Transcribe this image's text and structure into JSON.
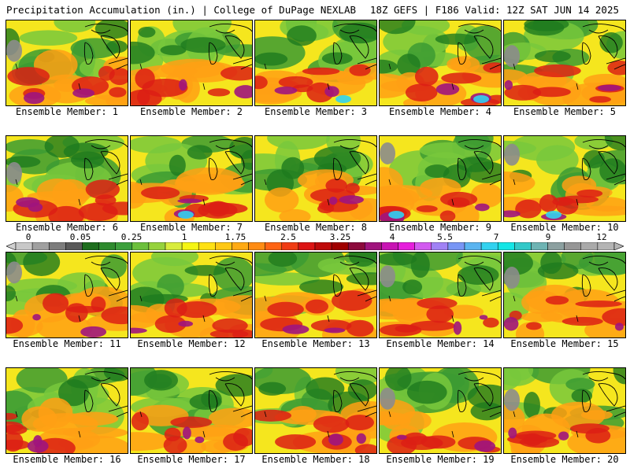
{
  "header": {
    "left": "Precipitation Accumulation (in.) | College of DuPage NEXLAB",
    "right": "18Z GEFS | F186 Valid: 12Z SAT JUN 14 2025"
  },
  "members": [
    "Ensemble Member: 1",
    "Ensemble Member: 2",
    "Ensemble Member: 3",
    "Ensemble Member: 4",
    "Ensemble Member: 5",
    "Ensemble Member: 6",
    "Ensemble Member: 7",
    "Ensemble Member: 8",
    "Ensemble Member: 9",
    "Ensemble Member: 10",
    "Ensemble Member: 11",
    "Ensemble Member: 12",
    "Ensemble Member: 13",
    "Ensemble Member: 14",
    "Ensemble Member: 15",
    "Ensemble Member: 16",
    "Ensemble Member: 17",
    "Ensemble Member: 18",
    "Ensemble Member: 19",
    "Ensemble Member: 20"
  ],
  "scale": {
    "labels": [
      "0",
      "0.05",
      "0.25",
      "1",
      "1.75",
      "2.5",
      "3.25",
      "4",
      "5.5",
      "7",
      "9",
      "12"
    ],
    "colors": [
      "#c8c8c8",
      "#a0a0a0",
      "#7d7d7d",
      "#5a5a5a",
      "#1e6e1e",
      "#2e8b2e",
      "#3ca03c",
      "#6cc03c",
      "#96d23c",
      "#d8ec3c",
      "#f5f514",
      "#ffe114",
      "#ffc814",
      "#ffaa14",
      "#ff8c14",
      "#ff6414",
      "#f03c14",
      "#dc1414",
      "#be0a0a",
      "#a00000",
      "#8c0a3c",
      "#a0147d",
      "#c814b4",
      "#e61edc",
      "#d25af0",
      "#a082f5",
      "#7896f5",
      "#5ab4f0",
      "#32d2f0",
      "#14e6e6",
      "#32c8c8",
      "#6eb4b4",
      "#8ca0a0",
      "#969696",
      "#aaaaaa",
      "#b4b4b4"
    ]
  }
}
